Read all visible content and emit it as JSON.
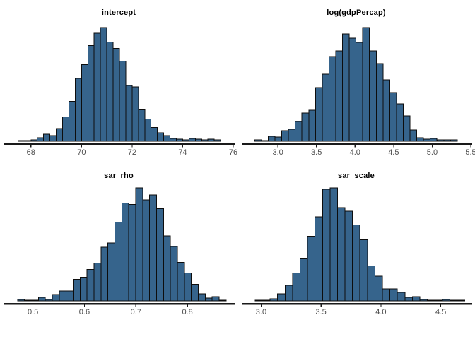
{
  "figure": {
    "background": "#ffffff",
    "kind": "posterior-histogram-grid",
    "rows": 2,
    "cols": 2
  },
  "style": {
    "bar_fill": "#36648C",
    "bar_stroke": "#0d0d0d",
    "axis_color": "#1a1a1a",
    "tick_label_color": "#4d4d4d",
    "title_color": "#000000",
    "tick_label_font_size": 11,
    "title_font_size": 11
  },
  "chart_data": [
    {
      "type": "bar",
      "variant": "histogram",
      "title": "intercept",
      "x_range": [
        67.0,
        76.0
      ],
      "x_tick_values": [
        68,
        70,
        72,
        74,
        76
      ],
      "x_tick_labels": [
        "68",
        "70",
        "72",
        "74",
        "76"
      ],
      "grid": false,
      "y_axis": false,
      "bin_start": 67.5,
      "bin_width": 0.25,
      "counts": [
        1,
        1,
        2,
        5,
        10,
        8,
        18,
        35,
        57,
        90,
        110,
        137,
        155,
        163,
        142,
        133,
        115,
        80,
        78,
        45,
        32,
        20,
        12,
        8,
        4,
        3,
        2,
        4,
        3,
        2,
        3,
        2
      ]
    },
    {
      "type": "bar",
      "variant": "histogram",
      "title": "log(gdpPercap)",
      "x_range": [
        2.55,
        5.5
      ],
      "x_tick_values": [
        3.0,
        3.5,
        4.0,
        4.5,
        5.0,
        5.5
      ],
      "x_tick_labels": [
        "3.0",
        "3.5",
        "4.0",
        "4.5",
        "5.0",
        "5.5"
      ],
      "grid": false,
      "y_axis": false,
      "bin_start": 2.7,
      "bin_width": 0.0875,
      "counts": [
        2,
        1,
        7,
        6,
        15,
        17,
        28,
        40,
        44,
        76,
        95,
        120,
        128,
        152,
        146,
        140,
        161,
        128,
        110,
        87,
        69,
        53,
        36,
        16,
        5,
        3,
        4,
        2,
        2,
        2
      ]
    },
    {
      "type": "bar",
      "variant": "histogram",
      "title": "sar_rho",
      "x_range": [
        0.447,
        0.889
      ],
      "x_tick_values": [
        0.5,
        0.6,
        0.7,
        0.8
      ],
      "x_tick_labels": [
        "0.5",
        "0.6",
        "0.7",
        "0.8"
      ],
      "grid": false,
      "y_axis": false,
      "bin_start": 0.47,
      "bin_width": 0.0135,
      "counts": [
        2,
        1,
        1,
        5,
        2,
        9,
        14,
        14,
        31,
        34,
        45,
        54,
        77,
        83,
        113,
        140,
        138,
        162,
        145,
        152,
        132,
        93,
        78,
        55,
        40,
        24,
        10,
        4,
        6,
        1
      ]
    },
    {
      "type": "bar",
      "variant": "histogram",
      "title": "sar_scale",
      "x_range": [
        2.85,
        4.75
      ],
      "x_tick_values": [
        3.0,
        3.5,
        4.0,
        4.5
      ],
      "x_tick_labels": [
        "3.0",
        "3.5",
        "4.0",
        "4.5"
      ],
      "grid": false,
      "y_axis": false,
      "bin_start": 2.95,
      "bin_width": 0.0625,
      "counts": [
        1,
        1,
        3,
        10,
        22,
        40,
        60,
        92,
        120,
        159,
        161,
        133,
        128,
        108,
        87,
        50,
        35,
        17,
        17,
        12,
        5,
        6,
        2,
        1,
        1,
        2,
        1,
        1
      ]
    }
  ]
}
